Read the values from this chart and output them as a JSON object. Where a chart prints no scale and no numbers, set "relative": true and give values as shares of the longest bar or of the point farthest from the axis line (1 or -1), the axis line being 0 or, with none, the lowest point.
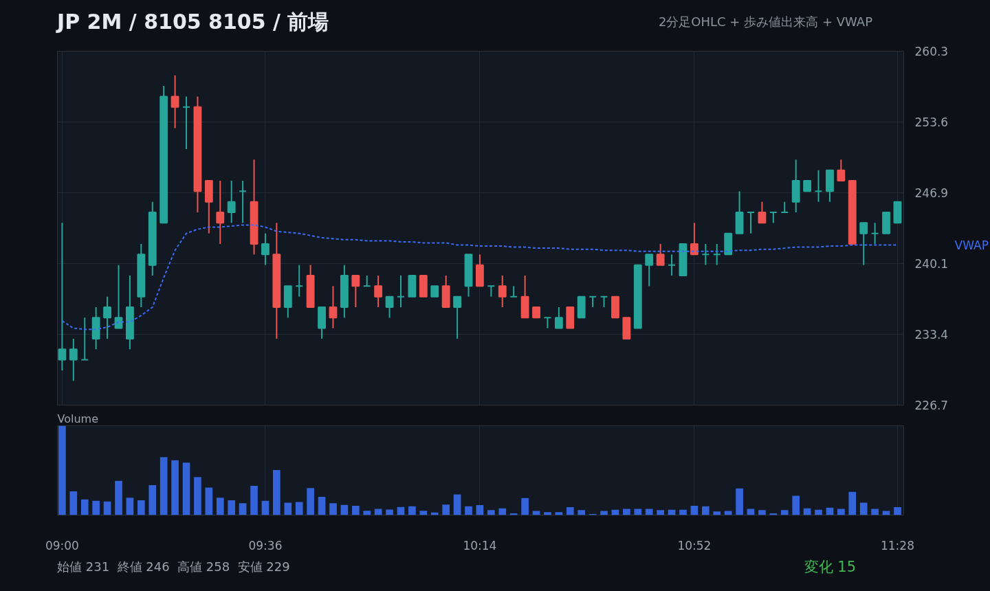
{
  "chart_data": [
    {
      "type": "candlestick",
      "title": "JP 2M / 8105 8105 / 前場",
      "subtitle": "2分足OHLC + 歩み値出来高 + VWAP",
      "x": [
        9.0,
        9.0333,
        9.0667,
        9.1,
        9.1333,
        9.1667,
        9.2,
        9.2333,
        9.2667,
        9.3,
        9.3333,
        9.3667,
        9.4,
        9.4333,
        9.4667,
        9.5,
        9.5333,
        9.5667,
        9.6,
        9.6333,
        9.6667,
        9.7,
        9.7333,
        9.7667,
        9.8,
        9.8333,
        9.8667,
        9.9,
        9.9333,
        9.9667,
        10.0,
        10.0333,
        10.0667,
        10.1,
        10.1333,
        10.1667,
        10.2,
        10.2333,
        10.2667,
        10.3,
        10.3333,
        10.3667,
        10.4,
        10.4333,
        10.4667,
        10.5,
        10.5333,
        10.5667,
        10.6,
        10.6333,
        10.6667,
        10.7,
        10.7333,
        10.7667,
        10.8,
        10.8333,
        10.8667,
        10.9,
        10.9333,
        10.9667,
        11.0,
        11.0333,
        11.0667,
        11.1,
        11.1333,
        11.1667,
        11.2,
        11.2333,
        11.2667,
        11.3,
        11.3333,
        11.3667,
        11.4,
        11.4333,
        11.4667
      ],
      "ohlc": [
        [
          231,
          244,
          230,
          232
        ],
        [
          231,
          233,
          229,
          232
        ],
        [
          231,
          235,
          231,
          231
        ],
        [
          233,
          236,
          232,
          235
        ],
        [
          235,
          237,
          233,
          236
        ],
        [
          234,
          240,
          234,
          235
        ],
        [
          233,
          239,
          232,
          236
        ],
        [
          237,
          242,
          236,
          241
        ],
        [
          240,
          246,
          239,
          245
        ],
        [
          244,
          257,
          244,
          256
        ],
        [
          256,
          258,
          253,
          255
        ],
        [
          255,
          256,
          251,
          255
        ],
        [
          255,
          256,
          245,
          247
        ],
        [
          248,
          248,
          243,
          246
        ],
        [
          245,
          248,
          242,
          244
        ],
        [
          245,
          248,
          244,
          246
        ],
        [
          247,
          248,
          244,
          247
        ],
        [
          246,
          250,
          241,
          242
        ],
        [
          241,
          243,
          240,
          242
        ],
        [
          241,
          244,
          233,
          236
        ],
        [
          236,
          238,
          235,
          238
        ],
        [
          238,
          240,
          237,
          238
        ],
        [
          239,
          240,
          236,
          236
        ],
        [
          234,
          236,
          233,
          236
        ],
        [
          236,
          238,
          234,
          235
        ],
        [
          236,
          240,
          235,
          239
        ],
        [
          239,
          239,
          236,
          238
        ],
        [
          238,
          239,
          238,
          238
        ],
        [
          238,
          239,
          236,
          237
        ],
        [
          236,
          237,
          235,
          237
        ],
        [
          237,
          239,
          236,
          237
        ],
        [
          237,
          239,
          237,
          239
        ],
        [
          239,
          239,
          237,
          237
        ],
        [
          237,
          238,
          237,
          238
        ],
        [
          238,
          239,
          236,
          236
        ],
        [
          236,
          237,
          233,
          237
        ],
        [
          238,
          241,
          237,
          241
        ],
        [
          240,
          241,
          238,
          238
        ],
        [
          238,
          238,
          237,
          238
        ],
        [
          238,
          239,
          236,
          237
        ],
        [
          237,
          238,
          237,
          237
        ],
        [
          237,
          239,
          235,
          235
        ],
        [
          236,
          236,
          235,
          235
        ],
        [
          235,
          235,
          234,
          235
        ],
        [
          234,
          236,
          234,
          235
        ],
        [
          236,
          236,
          234,
          234
        ],
        [
          235,
          237,
          235,
          237
        ],
        [
          237,
          237,
          236,
          237
        ],
        [
          237,
          237,
          236,
          237
        ],
        [
          237,
          237,
          235,
          235
        ],
        [
          235,
          235,
          233,
          233
        ],
        [
          234,
          240,
          234,
          240
        ],
        [
          240,
          241,
          238,
          241
        ],
        [
          241,
          242,
          240,
          240
        ],
        [
          240,
          241,
          239,
          240
        ],
        [
          239,
          242,
          239,
          242
        ],
        [
          242,
          244,
          241,
          241
        ],
        [
          241,
          242,
          240,
          241
        ],
        [
          241,
          242,
          240,
          241
        ],
        [
          241,
          243,
          241,
          243
        ],
        [
          243,
          247,
          243,
          245
        ],
        [
          245,
          245,
          243,
          245
        ],
        [
          245,
          246,
          244,
          244
        ],
        [
          245,
          245,
          244,
          245
        ],
        [
          245,
          246,
          245,
          245
        ],
        [
          246,
          250,
          245,
          248
        ],
        [
          247,
          248,
          247,
          248
        ],
        [
          247,
          249,
          246,
          247
        ],
        [
          247,
          249,
          246,
          249
        ],
        [
          249,
          250,
          248,
          248
        ],
        [
          248,
          248,
          242,
          242
        ],
        [
          243,
          244,
          240,
          244
        ],
        [
          243,
          244,
          242,
          243
        ],
        [
          243,
          245,
          243,
          245
        ],
        [
          244,
          246,
          244,
          246
        ]
      ],
      "colors": [
        "#26a69a",
        "#26a69a",
        "#26a69a",
        "#26a69a",
        "#26a69a",
        "#26a69a",
        "#26a69a",
        "#26a69a",
        "#26a69a",
        "#26a69a",
        "#ef5350",
        "#26a69a",
        "#ef5350",
        "#ef5350",
        "#ef5350",
        "#26a69a",
        "#26a69a",
        "#ef5350",
        "#26a69a",
        "#ef5350",
        "#26a69a",
        "#26a69a",
        "#ef5350",
        "#26a69a",
        "#ef5350",
        "#26a69a",
        "#ef5350",
        "#26a69a",
        "#ef5350",
        "#26a69a",
        "#26a69a",
        "#26a69a",
        "#ef5350",
        "#26a69a",
        "#ef5350",
        "#26a69a",
        "#26a69a",
        "#ef5350",
        "#26a69a",
        "#ef5350",
        "#26a69a",
        "#ef5350",
        "#ef5350",
        "#26a69a",
        "#26a69a",
        "#ef5350",
        "#26a69a",
        "#26a69a",
        "#26a69a",
        "#ef5350",
        "#ef5350",
        "#26a69a",
        "#26a69a",
        "#ef5350",
        "#26a69a",
        "#26a69a",
        "#ef5350",
        "#26a69a",
        "#26a69a",
        "#26a69a",
        "#26a69a",
        "#26a69a",
        "#ef5350",
        "#26a69a",
        "#26a69a",
        "#26a69a",
        "#26a69a",
        "#26a69a",
        "#26a69a",
        "#ef5350",
        "#ef5350",
        "#26a69a",
        "#26a69a",
        "#26a69a",
        "#26a69a"
      ],
      "series": [
        {
          "name": "VWAP",
          "type": "line",
          "color": "#3d6cf5",
          "line_style": "dashed",
          "values": [
            234.7,
            234.0,
            233.9,
            233.9,
            234.1,
            234.6,
            234.6,
            235.2,
            236.0,
            238.8,
            241.4,
            243.0,
            243.4,
            243.6,
            243.6,
            243.7,
            243.8,
            243.8,
            243.6,
            243.2,
            243.1,
            243.0,
            242.8,
            242.6,
            242.5,
            242.4,
            242.4,
            242.3,
            242.3,
            242.3,
            242.2,
            242.2,
            242.1,
            242.1,
            242.1,
            241.9,
            241.9,
            241.8,
            241.8,
            241.8,
            241.7,
            241.7,
            241.6,
            241.6,
            241.6,
            241.5,
            241.5,
            241.5,
            241.4,
            241.4,
            241.4,
            241.3,
            241.3,
            241.3,
            241.3,
            241.3,
            241.3,
            241.3,
            241.3,
            241.3,
            241.4,
            241.4,
            241.5,
            241.5,
            241.6,
            241.7,
            241.7,
            241.7,
            241.8,
            241.8,
            241.9,
            241.9,
            241.9,
            241.9,
            241.9
          ]
        }
      ],
      "xlim": [
        8.986,
        11.485
      ],
      "ylim": [
        226.7,
        260.3
      ],
      "xticks": [
        {
          "value": 9.0,
          "label": null
        },
        {
          "value": 9.6,
          "label": null
        },
        {
          "value": 10.2333,
          "label": null
        },
        {
          "value": 10.8667,
          "label": null
        },
        {
          "value": 11.4667,
          "label": null
        }
      ],
      "yticks": [
        {
          "value": 226.7,
          "label": "226.7"
        },
        {
          "value": 233.42,
          "label": "233.4"
        },
        {
          "value": 240.14,
          "label": "240.1"
        },
        {
          "value": 246.86,
          "label": "246.9"
        },
        {
          "value": 253.58,
          "label": "253.6"
        },
        {
          "value": 260.3,
          "label": "260.3"
        }
      ],
      "tick_labels": "y",
      "grid": true
    },
    {
      "type": "bar",
      "title": "Volume",
      "relative": true,
      "color": "#3563d9",
      "x": [
        9.0,
        9.0333,
        9.0667,
        9.1,
        9.1333,
        9.1667,
        9.2,
        9.2333,
        9.2667,
        9.3,
        9.3333,
        9.3667,
        9.4,
        9.4333,
        9.4667,
        9.5,
        9.5333,
        9.5667,
        9.6,
        9.6333,
        9.6667,
        9.7,
        9.7333,
        9.7667,
        9.8,
        9.8333,
        9.8667,
        9.9,
        9.9333,
        9.9667,
        10.0,
        10.0333,
        10.0667,
        10.1,
        10.1333,
        10.1667,
        10.2,
        10.2333,
        10.2667,
        10.3,
        10.3333,
        10.3667,
        10.4,
        10.4333,
        10.4667,
        10.5,
        10.5333,
        10.5667,
        10.6,
        10.6333,
        10.6667,
        10.7,
        10.7333,
        10.7667,
        10.8,
        10.8333,
        10.8667,
        10.9,
        10.9333,
        10.9667,
        11.0,
        11.0333,
        11.0667,
        11.1,
        11.1333,
        11.1667,
        11.2,
        11.2333,
        11.2667,
        11.3,
        11.3333,
        11.3667,
        11.4,
        11.4333,
        11.4667
      ],
      "values": [
        1.0,
        0.265,
        0.175,
        0.16,
        0.152,
        0.383,
        0.194,
        0.166,
        0.335,
        0.648,
        0.614,
        0.586,
        0.425,
        0.307,
        0.194,
        0.166,
        0.132,
        0.327,
        0.16,
        0.504,
        0.138,
        0.146,
        0.301,
        0.203,
        0.132,
        0.113,
        0.104,
        0.048,
        0.07,
        0.062,
        0.09,
        0.099,
        0.048,
        0.028,
        0.118,
        0.231,
        0.099,
        0.112,
        0.055,
        0.075,
        0.02,
        0.19,
        0.046,
        0.032,
        0.032,
        0.089,
        0.055,
        0.011,
        0.046,
        0.06,
        0.069,
        0.069,
        0.069,
        0.055,
        0.06,
        0.06,
        0.103,
        0.098,
        0.04,
        0.046,
        0.299,
        0.069,
        0.055,
        0.02,
        0.055,
        0.216,
        0.075,
        0.06,
        0.083,
        0.069,
        0.259,
        0.138,
        0.069,
        0.046,
        0.089
      ],
      "xlim": [
        8.986,
        11.485
      ],
      "xticks": [
        {
          "value": 9.0,
          "label": "09:00"
        },
        {
          "value": 9.6,
          "label": "09:36"
        },
        {
          "value": 10.2333,
          "label": "10:14"
        },
        {
          "value": 10.8667,
          "label": "10:52"
        },
        {
          "value": 11.4667,
          "label": "11:28"
        }
      ],
      "tick_labels": "x",
      "grid": "x",
      "annotations": [
        "始値 231  終値 246  高値 258  安値 229",
        "変化 15"
      ]
    }
  ]
}
